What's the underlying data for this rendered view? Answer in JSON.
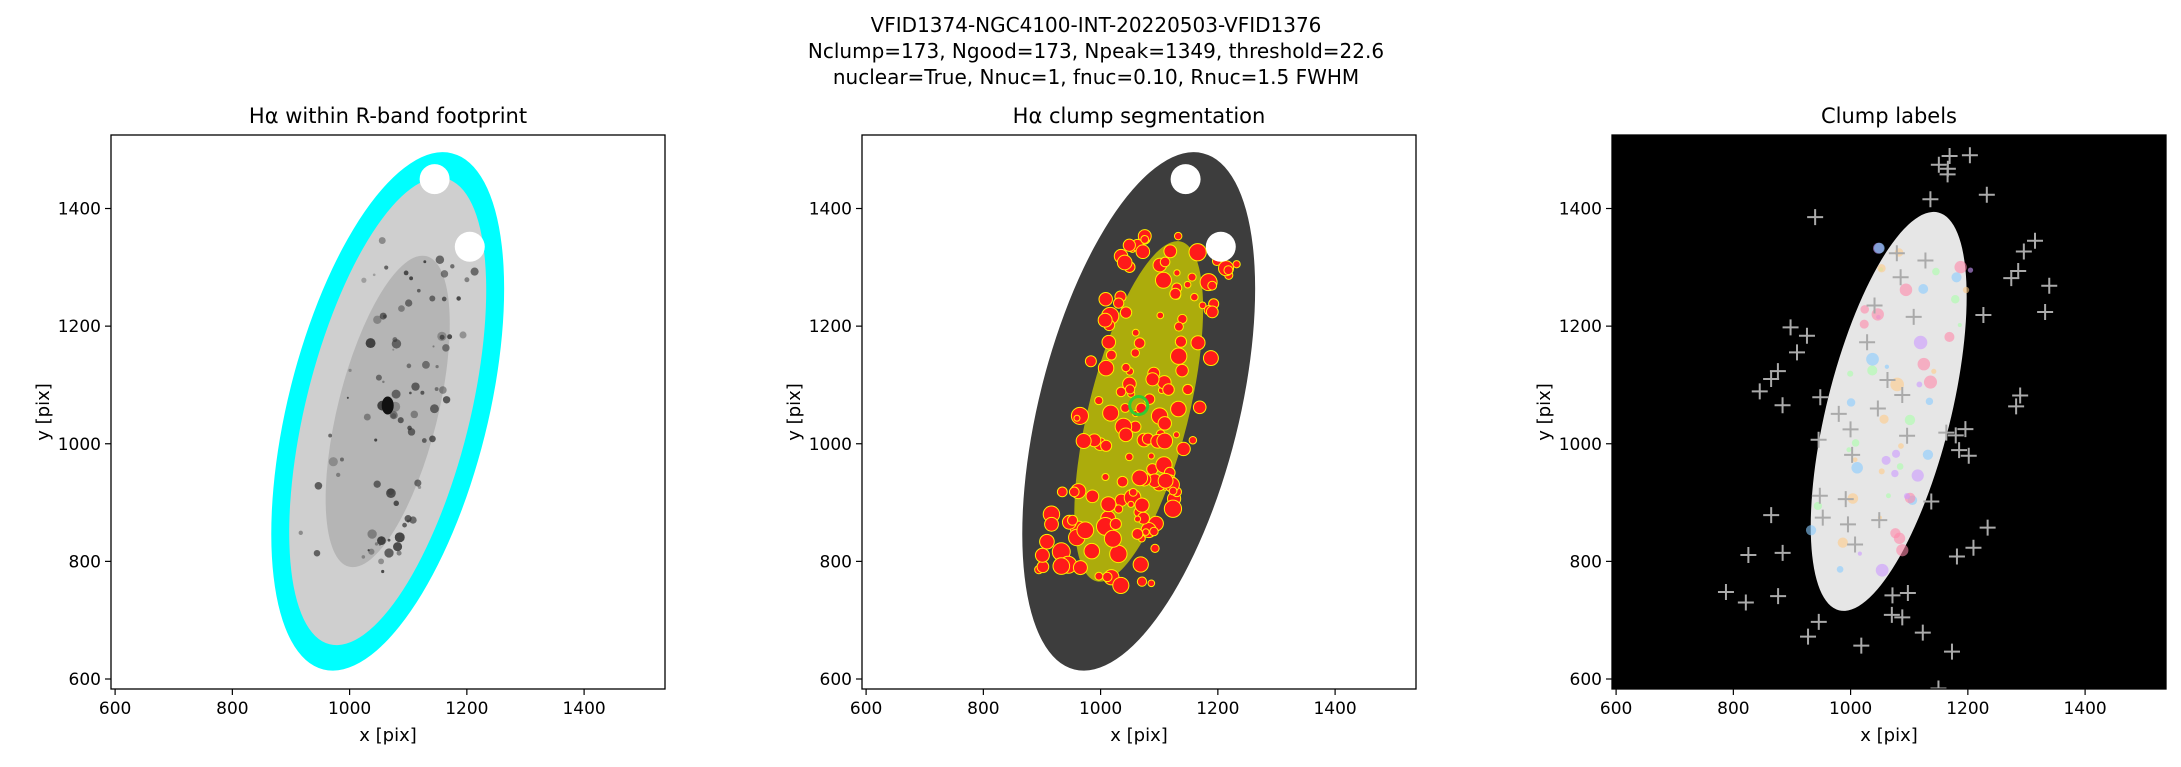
{
  "title": [
    "VFID1374-NGC4100-INT-20220503-VFID1376",
    "Nclump=173, Ngood=173, Npeak=1349, threshold=22.6",
    "nuclear=True, Nnuc=1, fnuc=0.10, Rnuc=1.5 FWHM"
  ],
  "chart_data": [
    {
      "type": "image",
      "title": "Hα within R-band footprint",
      "xlabel": "x [pix]",
      "ylabel": "y [pix]",
      "xlim": [
        593,
        1538
      ],
      "ylim": [
        583,
        1525
      ],
      "xticks": [
        600,
        800,
        1000,
        1200,
        1400
      ],
      "yticks": [
        600,
        800,
        1000,
        1200,
        1400
      ]
    },
    {
      "type": "image",
      "title": "Hα clump segmentation",
      "xlabel": "x [pix]",
      "ylabel": "y [pix]",
      "xlim": [
        593,
        1538
      ],
      "ylim": [
        583,
        1525
      ],
      "xticks": [
        600,
        800,
        1000,
        1200,
        1400
      ],
      "yticks": [
        600,
        800,
        1000,
        1200,
        1400
      ]
    },
    {
      "type": "image",
      "title": "Clump labels",
      "xlabel": "x [pix]",
      "ylabel": "y [pix]",
      "xlim": [
        593,
        1538
      ],
      "ylim": [
        583,
        1525
      ],
      "xticks": [
        600,
        800,
        1000,
        1200,
        1400
      ],
      "yticks": [
        600,
        800,
        1000,
        1200,
        1400
      ]
    }
  ]
}
